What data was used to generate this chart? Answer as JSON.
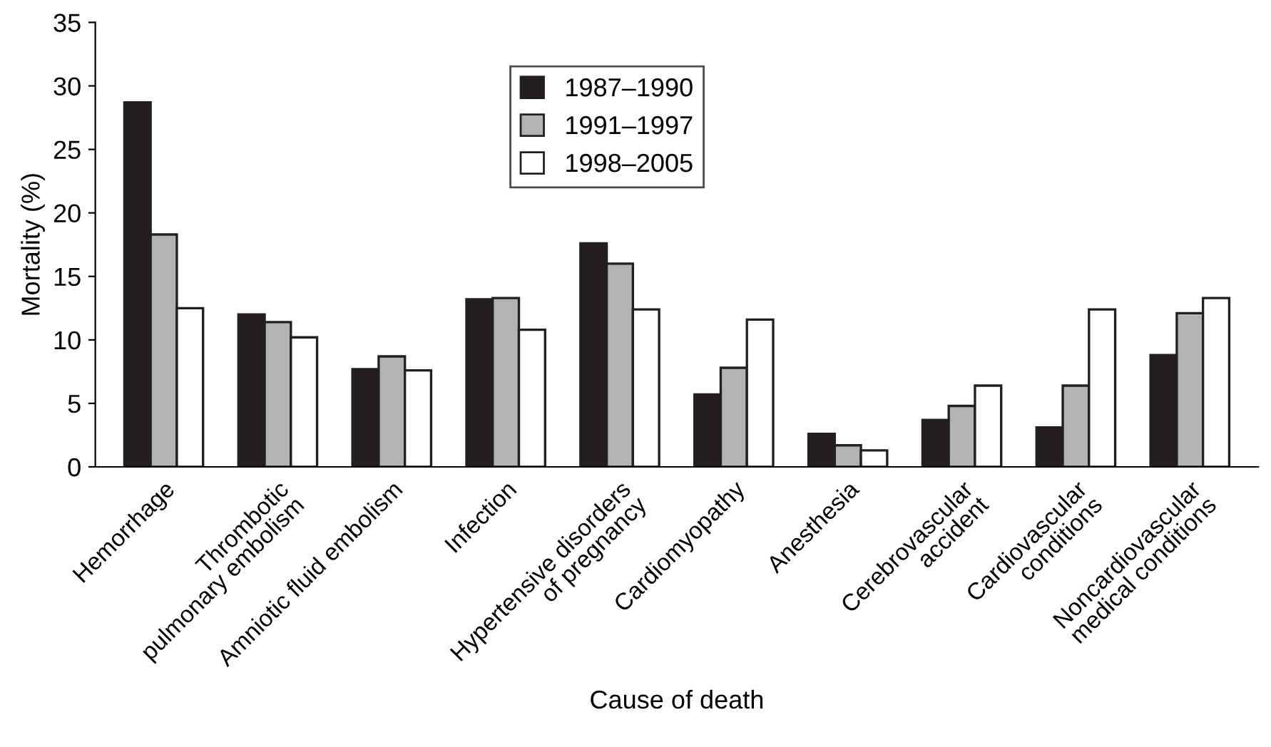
{
  "chart_data": {
    "type": "bar",
    "xlabel": "Cause of death",
    "ylabel": "Mortality (%)",
    "categories": [
      "Hemorrhage",
      "Thrombotic\npulmonary embolism",
      "Amniotic fluid embolism",
      "Infection",
      "Hypertensive disorders\nof pregnancy",
      "Cardiomyopathy",
      "Anesthesia",
      "Cerebrovascular\naccident",
      "Cardiovascular\nconditions",
      "Noncardiovascular\nmedical conditions"
    ],
    "series": [
      {
        "name": "1987–1990",
        "color": "#231f20",
        "values": [
          28.7,
          12.0,
          7.7,
          13.2,
          17.6,
          5.7,
          2.6,
          3.7,
          3.1,
          8.8
        ]
      },
      {
        "name": "1991–1997",
        "color": "#b3b3b5",
        "values": [
          18.3,
          11.4,
          8.7,
          13.3,
          16.0,
          7.8,
          1.7,
          4.8,
          6.4,
          12.1
        ]
      },
      {
        "name": "1998–2005",
        "color": "#ffffff",
        "values": [
          12.5,
          10.2,
          7.6,
          10.8,
          12.4,
          11.6,
          1.3,
          6.4,
          12.4,
          13.3
        ]
      }
    ],
    "ylim": [
      0,
      35
    ],
    "yticks": [
      0,
      5,
      10,
      15,
      20,
      25,
      30,
      35
    ],
    "grid": false,
    "legend": "top center"
  }
}
